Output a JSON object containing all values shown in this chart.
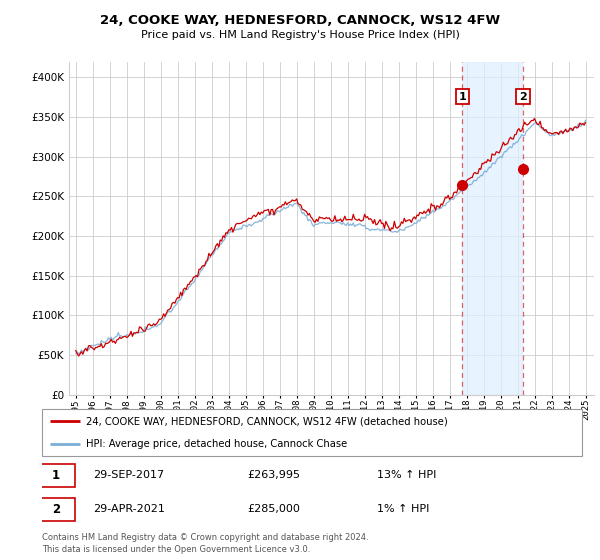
{
  "title": "24, COOKE WAY, HEDNESFORD, CANNOCK, WS12 4FW",
  "subtitle": "Price paid vs. HM Land Registry's House Price Index (HPI)",
  "hpi_label": "HPI: Average price, detached house, Cannock Chase",
  "property_label": "24, COOKE WAY, HEDNESFORD, CANNOCK, WS12 4FW (detached house)",
  "annotation1": {
    "num": "1",
    "date": "29-SEP-2017",
    "price": "£263,995",
    "change": "13% ↑ HPI"
  },
  "annotation2": {
    "num": "2",
    "date": "29-APR-2021",
    "price": "£285,000",
    "change": "1% ↑ HPI"
  },
  "footnote": "Contains HM Land Registry data © Crown copyright and database right 2024.\nThis data is licensed under the Open Government Licence v3.0.",
  "ylim": [
    0,
    420000
  ],
  "yticks": [
    0,
    50000,
    100000,
    150000,
    200000,
    250000,
    300000,
    350000,
    400000
  ],
  "property_color": "#cc0000",
  "hpi_color": "#7aaed6",
  "shaded_color": "#ddeeff",
  "grid_color": "#cccccc",
  "sale1_year": 2017.75,
  "sale2_year": 2021.33,
  "sale1_price": 263995,
  "sale2_price": 285000,
  "bg_color": "#f8f8f8"
}
